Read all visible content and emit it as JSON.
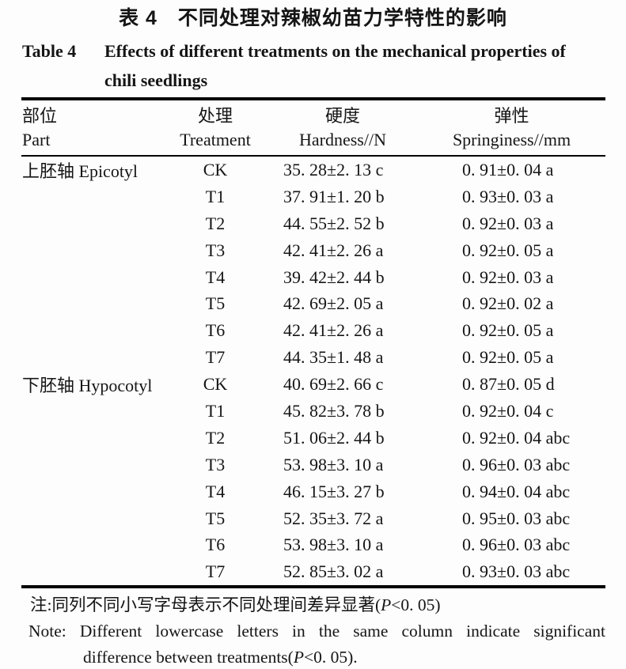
{
  "title": {
    "cn": "表 4　不同处理对辣椒幼苗力学特性的影响",
    "en_label": "Table 4",
    "en_line1": "Effects of different treatments on the mechanical properties of",
    "en_line2": "chili seedlings"
  },
  "table": {
    "headers": {
      "part_cn": "部位",
      "part_en": "Part",
      "treatment_cn": "处理",
      "treatment_en": "Treatment",
      "hardness_cn": "硬度",
      "hardness_en": "Hardness//N",
      "springiness_cn": "弹性",
      "springiness_en": "Springiness//mm"
    },
    "rows": [
      {
        "part": "上胚轴 Epicotyl",
        "treatment": "CK",
        "hardness": "35. 28±2. 13 c",
        "springiness": "0. 91±0. 04 a"
      },
      {
        "part": "",
        "treatment": "T1",
        "hardness": "37. 91±1. 20 b",
        "springiness": "0. 93±0. 03 a"
      },
      {
        "part": "",
        "treatment": "T2",
        "hardness": "44. 55±2. 52 b",
        "springiness": "0. 92±0. 03 a"
      },
      {
        "part": "",
        "treatment": "T3",
        "hardness": "42. 41±2. 26 a",
        "springiness": "0. 92±0. 05 a"
      },
      {
        "part": "",
        "treatment": "T4",
        "hardness": "39. 42±2. 44 b",
        "springiness": "0. 92±0. 03 a"
      },
      {
        "part": "",
        "treatment": "T5",
        "hardness": "42. 69±2. 05 a",
        "springiness": "0. 92±0. 02 a"
      },
      {
        "part": "",
        "treatment": "T6",
        "hardness": "42. 41±2. 26 a",
        "springiness": "0. 92±0. 05 a"
      },
      {
        "part": "",
        "treatment": "T7",
        "hardness": "44. 35±1. 48 a",
        "springiness": "0. 92±0. 05 a"
      },
      {
        "part": "下胚轴 Hypocotyl",
        "treatment": "CK",
        "hardness": "40. 69±2. 66 c",
        "springiness": "0. 87±0. 05 d"
      },
      {
        "part": "",
        "treatment": "T1",
        "hardness": "45. 82±3. 78 b",
        "springiness": "0. 92±0. 04 c"
      },
      {
        "part": "",
        "treatment": "T2",
        "hardness": "51. 06±2. 44 b",
        "springiness": "0. 92±0. 04 abc"
      },
      {
        "part": "",
        "treatment": "T3",
        "hardness": "53. 98±3. 10 a",
        "springiness": "0. 96±0. 03 abc"
      },
      {
        "part": "",
        "treatment": "T4",
        "hardness": "46. 15±3. 27 b",
        "springiness": "0. 94±0. 04 abc"
      },
      {
        "part": "",
        "treatment": "T5",
        "hardness": "52. 35±3. 72 a",
        "springiness": "0. 95±0. 03 abc"
      },
      {
        "part": "",
        "treatment": "T6",
        "hardness": "53. 98±3. 10 a",
        "springiness": "0. 96±0. 03 abc"
      },
      {
        "part": "",
        "treatment": "T7",
        "hardness": "52. 85±3. 02 a",
        "springiness": "0. 93±0. 03 abc"
      }
    ]
  },
  "footnote": {
    "cn": [
      "注:同列不同小写字母表示不同处理间差异显著(",
      "P",
      "<0. 05)"
    ],
    "en_line1": "Note: Different lowercase letters in the same column indicate significant",
    "en_line2": [
      "difference between treatments(",
      "P",
      "<0. 05)."
    ]
  },
  "chart_data": {
    "type": "table",
    "title": "Table 4 Effects of different treatments on the mechanical properties of chili seedlings",
    "columns": [
      "Part",
      "Treatment",
      "Hardness/N",
      "Springiness/mm"
    ],
    "rows": [
      [
        "Epicotyl",
        "CK",
        "35.28±2.13 c",
        "0.91±0.04 a"
      ],
      [
        "Epicotyl",
        "T1",
        "37.91±1.20 b",
        "0.93±0.03 a"
      ],
      [
        "Epicotyl",
        "T2",
        "44.55±2.52 b",
        "0.92±0.03 a"
      ],
      [
        "Epicotyl",
        "T3",
        "42.41±2.26 a",
        "0.92±0.05 a"
      ],
      [
        "Epicotyl",
        "T4",
        "39.42±2.44 b",
        "0.92±0.03 a"
      ],
      [
        "Epicotyl",
        "T5",
        "42.69±2.05 a",
        "0.92±0.02 a"
      ],
      [
        "Epicotyl",
        "T6",
        "42.41±2.26 a",
        "0.92±0.05 a"
      ],
      [
        "Epicotyl",
        "T7",
        "44.35±1.48 a",
        "0.92±0.05 a"
      ],
      [
        "Hypocotyl",
        "CK",
        "40.69±2.66 c",
        "0.87±0.05 d"
      ],
      [
        "Hypocotyl",
        "T1",
        "45.82±3.78 b",
        "0.92±0.04 c"
      ],
      [
        "Hypocotyl",
        "T2",
        "51.06±2.44 b",
        "0.92±0.04 abc"
      ],
      [
        "Hypocotyl",
        "T3",
        "53.98±3.10 a",
        "0.96±0.03 abc"
      ],
      [
        "Hypocotyl",
        "T4",
        "46.15±3.27 b",
        "0.94±0.04 abc"
      ],
      [
        "Hypocotyl",
        "T5",
        "52.35±3.72 a",
        "0.95±0.03 abc"
      ],
      [
        "Hypocotyl",
        "T6",
        "53.98±3.10 a",
        "0.96±0.03 abc"
      ],
      [
        "Hypocotyl",
        "T7",
        "52.85±3.02 a",
        "0.93±0.03 abc"
      ]
    ]
  }
}
